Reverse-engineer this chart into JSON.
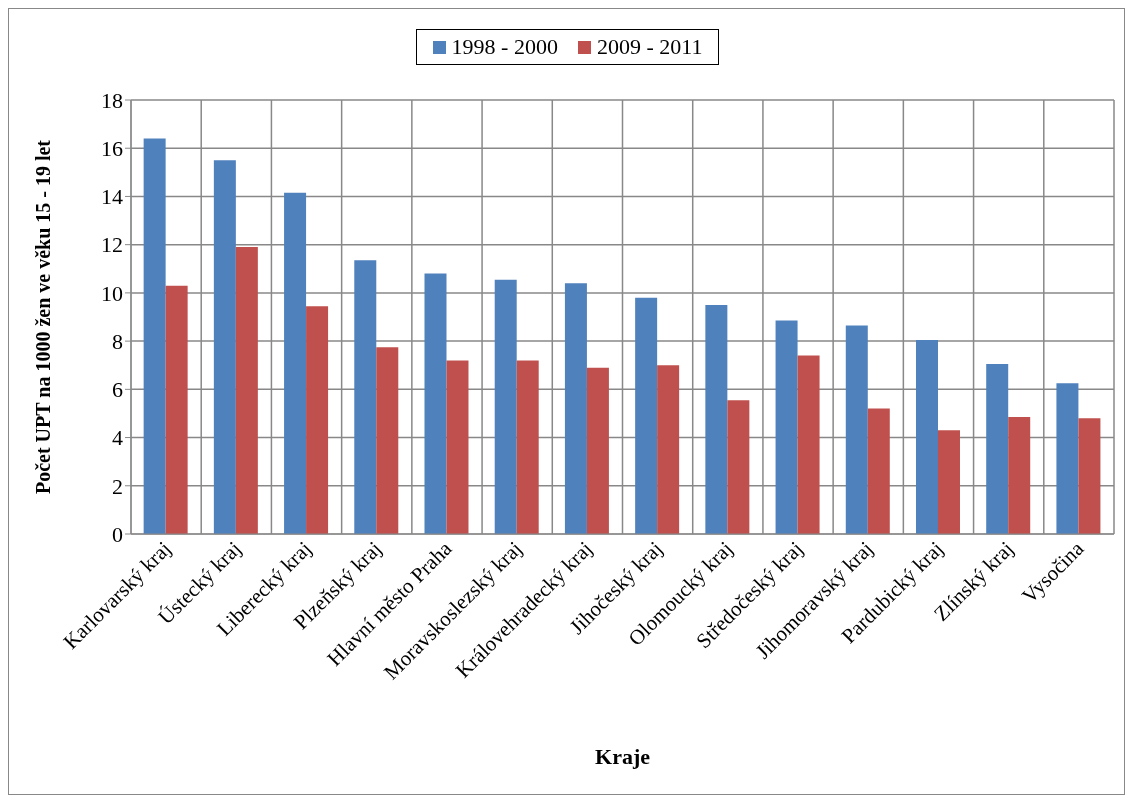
{
  "chart_data": {
    "type": "bar",
    "xlabel": "Kraje",
    "ylabel": "Počet UPT na 1000 žen ve věku 15 - 19 let",
    "categories": [
      "Karlovarský kraj",
      "Ústecký kraj",
      "Liberecký kraj",
      "Plzeňský kraj",
      "Hlavní město Praha",
      "Moravskoslezský kraj",
      "Královehradecký kraj",
      "Jihočeský kraj",
      "Olomoucký kraj",
      "Středočeský kraj",
      "Jihomoravský kraj",
      "Pardubický kraj",
      "Zlínský kraj",
      "Vysočina"
    ],
    "series": [
      {
        "name": "1998 - 2000",
        "color": "#4f81bd",
        "values": [
          16.4,
          15.5,
          14.15,
          11.35,
          10.8,
          10.55,
          10.4,
          9.8,
          9.5,
          8.85,
          8.65,
          8.05,
          7.05,
          6.25
        ]
      },
      {
        "name": "2009 - 2011",
        "color": "#c0504d",
        "values": [
          10.3,
          11.9,
          9.45,
          7.75,
          7.2,
          7.2,
          6.9,
          7.0,
          5.55,
          7.4,
          5.2,
          4.3,
          4.85,
          4.8
        ]
      }
    ],
    "ylim": [
      0,
      18
    ],
    "yticks": [
      0,
      2,
      4,
      6,
      8,
      10,
      12,
      14,
      16,
      18
    ],
    "grid": true,
    "legend": "top"
  }
}
